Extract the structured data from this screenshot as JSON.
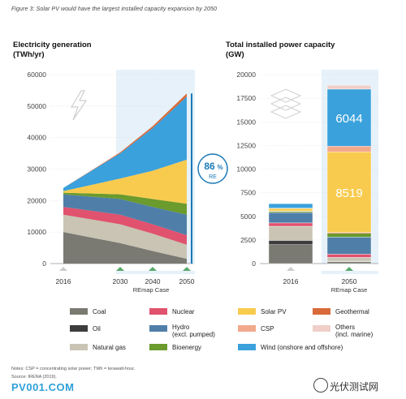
{
  "figure_title": "Figure 3: Solar PV would have the largest installed capacity expansion by 2050",
  "colors": {
    "coal": "#7a7a72",
    "oil": "#3d3d3d",
    "natural_gas": "#c9c4b4",
    "nuclear": "#e0526e",
    "hydro": "#4f7fa8",
    "bioenergy": "#6b9a2d",
    "solar_pv": "#f8cb4e",
    "csp": "#f2a98c",
    "wind": "#3aa1dc",
    "geothermal": "#d96a3a",
    "others": "#f0cfc8",
    "re_line": "#1a7ab7",
    "axis_marker": "#5ba86a"
  },
  "left_chart": {
    "title_line1": "Electricity generation",
    "title_line2": "(TWh/yr)",
    "re_badge_value": "86",
    "re_badge_unit": "%",
    "re_badge_label": "RE",
    "tick_labels": [
      "60000",
      "50000",
      "40000",
      "30000",
      "20000",
      "10000",
      "0"
    ],
    "x_tick_labels": [
      "2016",
      "2030",
      "2040",
      "2050"
    ],
    "x_case_label": "REmap Case"
  },
  "right_chart": {
    "title_line1": "Total installed power capacity",
    "title_line2": "(GW)",
    "tick_labels": [
      "20000",
      "17500",
      "15000",
      "12500",
      "10000",
      "7500",
      "5000",
      "2500",
      "0"
    ],
    "x_tick_labels": [
      "2016",
      "2050"
    ],
    "x_case_label": "REmap Case",
    "wind_label": "6044",
    "solar_label": "8519"
  },
  "chart_data": [
    {
      "type": "area",
      "title": "Electricity generation",
      "ylabel": "(TWh/yr)",
      "x": [
        2016,
        2030,
        2040,
        2050
      ],
      "ylim": [
        0,
        60000
      ],
      "series": [
        {
          "name": "Coal",
          "values": [
            10000,
            6500,
            4000,
            1500
          ]
        },
        {
          "name": "Natural gas",
          "values": [
            5500,
            6000,
            5500,
            4500
          ]
        },
        {
          "name": "Nuclear",
          "values": [
            2500,
            3000,
            3000,
            3000
          ]
        },
        {
          "name": "Hydro (excl. pumped)",
          "values": [
            4000,
            5000,
            5500,
            6500
          ]
        },
        {
          "name": "Bioenergy",
          "values": [
            500,
            1500,
            2500,
            3500
          ]
        },
        {
          "name": "Solar PV",
          "values": [
            500,
            5000,
            9000,
            14000
          ]
        },
        {
          "name": "Wind (onshore and offshore)",
          "values": [
            1000,
            8000,
            13500,
            20000
          ]
        },
        {
          "name": "Geothermal",
          "values": [
            0,
            300,
            600,
            1000
          ]
        }
      ]
    },
    {
      "type": "bar",
      "title": "Total installed power capacity",
      "ylabel": "(GW)",
      "categories": [
        "2016",
        "2050"
      ],
      "ylim": [
        0,
        20000
      ],
      "series": [
        {
          "name": "Coal",
          "values": [
            2000,
            200
          ]
        },
        {
          "name": "Oil",
          "values": [
            450,
            50
          ]
        },
        {
          "name": "Natural gas",
          "values": [
            1500,
            400
          ]
        },
        {
          "name": "Nuclear",
          "values": [
            350,
            350
          ]
        },
        {
          "name": "Hydro (excl. pumped)",
          "values": [
            1100,
            1800
          ]
        },
        {
          "name": "Bioenergy",
          "values": [
            130,
            400
          ]
        },
        {
          "name": "Geothermal",
          "values": [
            30,
            100
          ]
        },
        {
          "name": "Solar PV",
          "values": [
            300,
            8519
          ]
        },
        {
          "name": "CSP",
          "values": [
            10,
            600
          ]
        },
        {
          "name": "Wind (onshore and offshore)",
          "values": [
            500,
            6044
          ]
        },
        {
          "name": "Others (incl. marine)",
          "values": [
            10,
            400
          ]
        }
      ]
    }
  ],
  "legend": [
    {
      "key": "coal",
      "label": "Coal"
    },
    {
      "key": "nuclear",
      "label": "Nuclear"
    },
    {
      "key": "solar_pv",
      "label": "Solar PV"
    },
    {
      "key": "geothermal",
      "label": "Geothermal"
    },
    {
      "key": "oil",
      "label": "Oil"
    },
    {
      "key": "hydro",
      "label": "Hydro\n(excl. pumped)"
    },
    {
      "key": "csp",
      "label": "CSP"
    },
    {
      "key": "others",
      "label": "Others\n(incl. marine)"
    },
    {
      "key": "natural_gas",
      "label": "Natural gas"
    },
    {
      "key": "bioenergy",
      "label": "Bioenergy"
    },
    {
      "key": "wind",
      "label": "Wind (onshore and offshore)"
    }
  ],
  "notes": "Notes: CSP = concentrating solar power; TWh = terawatt-hour.",
  "source": "Source: IRENA (2019).",
  "watermark_left": "PV001.COM",
  "watermark_right": "光伏测试网"
}
